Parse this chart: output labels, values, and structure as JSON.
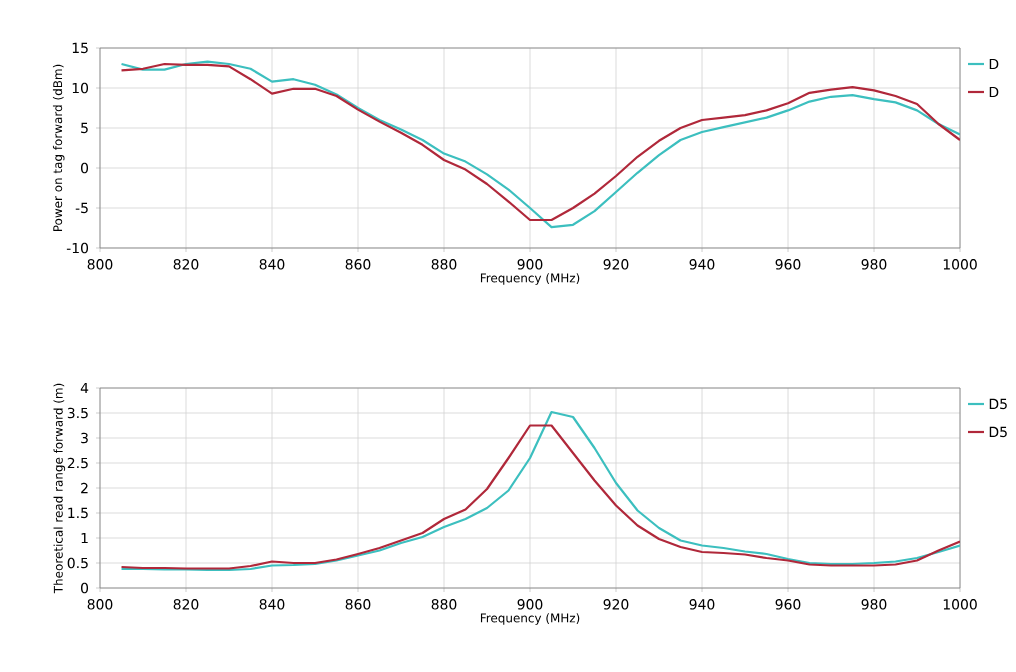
{
  "chart_data": [
    {
      "type": "line",
      "xlabel": "Frequency (MHz)",
      "ylabel": "Power on tag forward (dBm)",
      "xlim": [
        800,
        1000
      ],
      "xticks": [
        800,
        820,
        840,
        860,
        880,
        900,
        920,
        940,
        960,
        980,
        1000
      ],
      "ylim": [
        -10,
        15
      ],
      "yticks": [
        -10,
        -5,
        0,
        5,
        10,
        15
      ],
      "grid": true,
      "legend": "right",
      "x": [
        805,
        810,
        815,
        820,
        825,
        830,
        835,
        840,
        845,
        850,
        855,
        860,
        865,
        870,
        875,
        880,
        885,
        890,
        895,
        900,
        905,
        910,
        915,
        920,
        925,
        930,
        935,
        940,
        945,
        950,
        955,
        960,
        965,
        970,
        975,
        980,
        985,
        990,
        995,
        1000
      ],
      "series": [
        {
          "name": "D",
          "color": "#3cbfbf",
          "values": [
            13,
            12.3,
            12.3,
            13,
            13.3,
            13,
            12.4,
            10.8,
            11.1,
            10.4,
            9.2,
            7.5,
            6,
            4.8,
            3.5,
            1.8,
            0.8,
            -0.8,
            -2.7,
            -5,
            -7.4,
            -7.1,
            -5.4,
            -3,
            -0.6,
            1.6,
            3.5,
            4.5,
            5.1,
            5.7,
            6.3,
            7.2,
            8.3,
            8.9,
            9.1,
            8.6,
            8.2,
            7.2,
            5.5,
            4.2
          ]
        },
        {
          "name": "D",
          "color": "#b0283a",
          "values": [
            12.2,
            12.4,
            13,
            12.9,
            12.9,
            12.7,
            11.1,
            9.3,
            9.9,
            9.9,
            9,
            7.3,
            5.8,
            4.4,
            2.9,
            1,
            -0.2,
            -2,
            -4.2,
            -6.5,
            -6.5,
            -5,
            -3.2,
            -1,
            1.4,
            3.4,
            5,
            6,
            6.3,
            6.6,
            7.2,
            8.1,
            9.4,
            9.8,
            10.1,
            9.7,
            9,
            8,
            5.5,
            3.5
          ]
        }
      ]
    },
    {
      "type": "line",
      "xlabel": "Frequency (MHz)",
      "ylabel": "Theoretical read range forward (m)",
      "xlim": [
        800,
        1000
      ],
      "xticks": [
        800,
        820,
        840,
        860,
        880,
        900,
        920,
        940,
        960,
        980,
        1000
      ],
      "ylim": [
        0,
        4
      ],
      "yticks": [
        0,
        0.5,
        1,
        1.5,
        2,
        2.5,
        3,
        3.5,
        4
      ],
      "grid": true,
      "legend": "right",
      "x": [
        805,
        810,
        815,
        820,
        825,
        830,
        835,
        840,
        845,
        850,
        855,
        860,
        865,
        870,
        875,
        880,
        885,
        890,
        895,
        900,
        905,
        910,
        915,
        920,
        925,
        930,
        935,
        940,
        945,
        950,
        955,
        960,
        965,
        970,
        975,
        980,
        985,
        990,
        995,
        1000
      ],
      "series": [
        {
          "name": "D5",
          "color": "#3cbfbf",
          "values": [
            0.38,
            0.38,
            0.37,
            0.37,
            0.36,
            0.36,
            0.38,
            0.45,
            0.46,
            0.48,
            0.55,
            0.65,
            0.75,
            0.9,
            1.02,
            1.22,
            1.38,
            1.6,
            1.95,
            2.6,
            3.52,
            3.42,
            2.8,
            2.1,
            1.55,
            1.2,
            0.95,
            0.85,
            0.8,
            0.73,
            0.68,
            0.58,
            0.5,
            0.48,
            0.48,
            0.5,
            0.53,
            0.6,
            0.72,
            0.85
          ]
        },
        {
          "name": "D5",
          "color": "#b0283a",
          "values": [
            0.42,
            0.4,
            0.4,
            0.39,
            0.39,
            0.39,
            0.44,
            0.53,
            0.5,
            0.5,
            0.57,
            0.68,
            0.8,
            0.95,
            1.1,
            1.38,
            1.57,
            1.98,
            2.6,
            3.25,
            3.25,
            2.7,
            2.15,
            1.65,
            1.25,
            0.98,
            0.82,
            0.72,
            0.7,
            0.67,
            0.6,
            0.55,
            0.47,
            0.45,
            0.45,
            0.45,
            0.47,
            0.55,
            0.75,
            0.93
          ]
        }
      ]
    }
  ]
}
